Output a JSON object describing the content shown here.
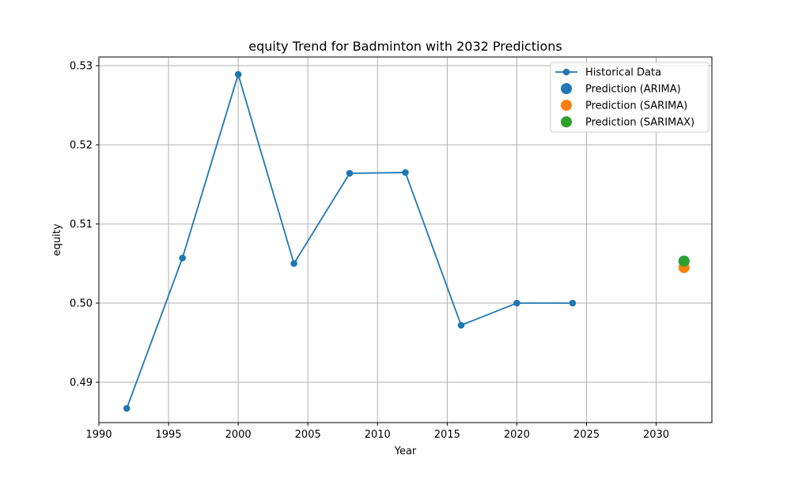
{
  "chart_data": {
    "type": "line",
    "title": "equity Trend for Badminton with 2032 Predictions",
    "xlabel": "Year",
    "ylabel": "equity",
    "xlim": [
      1990,
      2034
    ],
    "ylim": [
      0.4849,
      0.5311
    ],
    "xticks": [
      1990,
      1995,
      2000,
      2005,
      2010,
      2015,
      2020,
      2025,
      2030
    ],
    "yticks": [
      0.49,
      0.5,
      0.51,
      0.52,
      0.53
    ],
    "ytick_labels": [
      "0.49",
      "0.50",
      "0.51",
      "0.52",
      "0.53"
    ],
    "grid": true,
    "legend_position": "top-right",
    "series": [
      {
        "name": "Historical Data",
        "kind": "line-marker",
        "color": "#1f77b4",
        "x": [
          1992,
          1996,
          2000,
          2004,
          2008,
          2012,
          2016,
          2020,
          2024
        ],
        "y": [
          0.4867,
          0.5057,
          0.5289,
          0.505,
          0.5164,
          0.5165,
          0.4972,
          0.5,
          0.5
        ]
      },
      {
        "name": "Prediction (ARIMA)",
        "kind": "point",
        "color": "#1f77b4",
        "x": [
          2032
        ],
        "y": [
          0.5053
        ]
      },
      {
        "name": "Prediction (SARIMA)",
        "kind": "point",
        "color": "#ff7f0e",
        "x": [
          2032
        ],
        "y": [
          0.5045
        ]
      },
      {
        "name": "Prediction (SARIMAX)",
        "kind": "point",
        "color": "#2ca02c",
        "x": [
          2032
        ],
        "y": [
          0.5053
        ]
      }
    ]
  }
}
